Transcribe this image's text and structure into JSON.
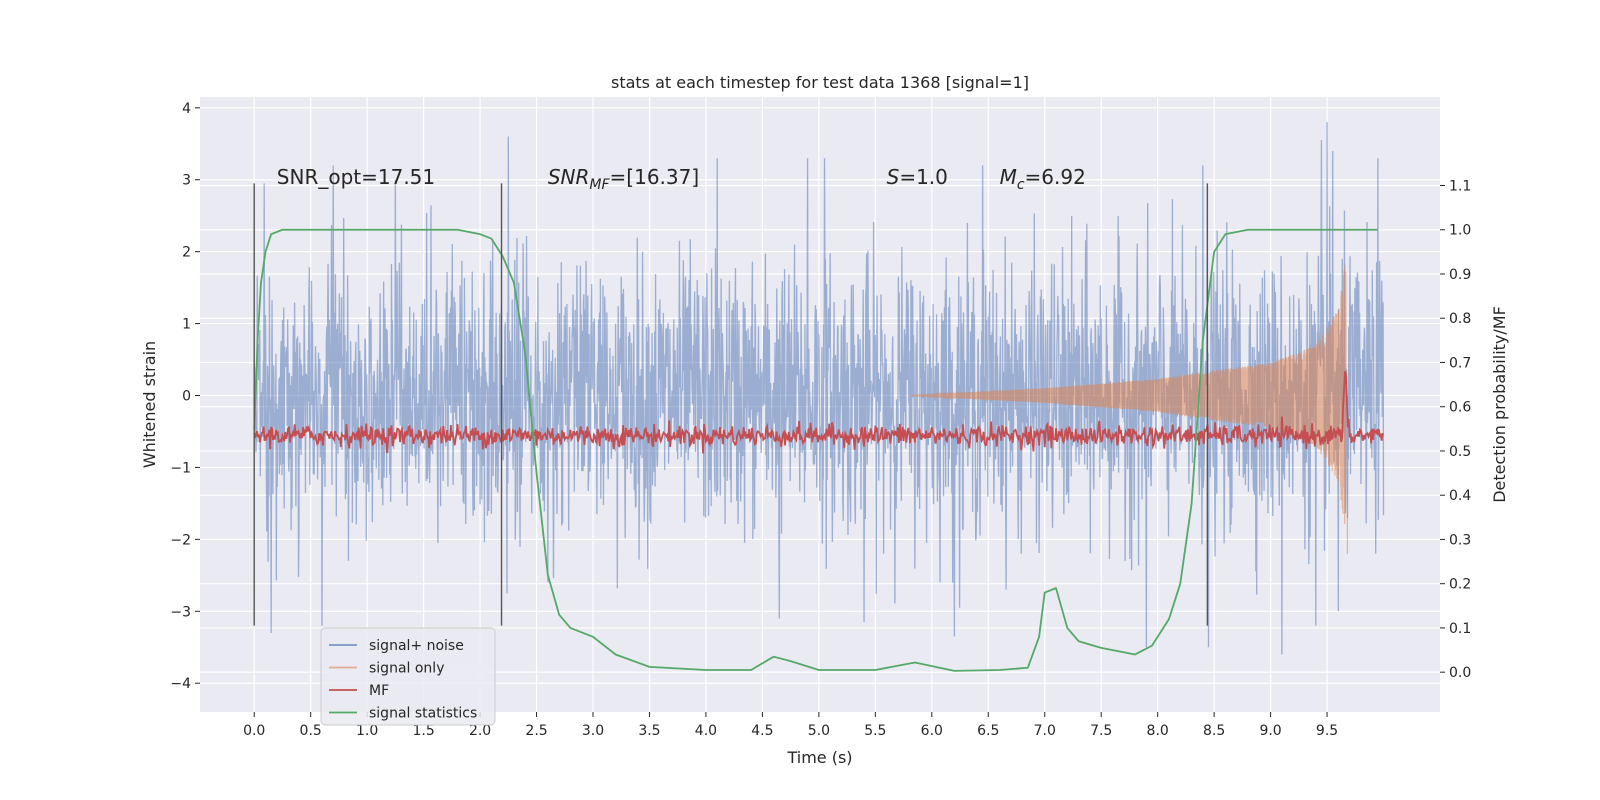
{
  "chart_data": {
    "type": "line",
    "title": "stats at each timestep for test data 1368 [signal=1]",
    "xlabel": "Time (s)",
    "ylabel": "Whitened strain",
    "y2label": "Detection probability/MF",
    "xlim": [
      -0.48,
      10.5
    ],
    "ylim": [
      -4.4,
      4.15
    ],
    "y2lim": [
      -0.09,
      1.3
    ],
    "xticks": [
      0.0,
      0.5,
      1.0,
      1.5,
      2.0,
      2.5,
      3.0,
      3.5,
      4.0,
      4.5,
      5.0,
      5.5,
      6.0,
      6.5,
      7.0,
      7.5,
      8.0,
      8.5,
      9.0,
      9.5
    ],
    "xtick_labels": [
      "0.0",
      "0.5",
      "1.0",
      "1.5",
      "2.0",
      "2.5",
      "3.0",
      "3.5",
      "4.0",
      "4.5",
      "5.0",
      "5.5",
      "6.0",
      "6.5",
      "7.0",
      "7.5",
      "8.0",
      "8.5",
      "9.0",
      "9.5"
    ],
    "yticks": [
      -4,
      -3,
      -2,
      -1,
      0,
      1,
      2,
      3,
      4
    ],
    "ytick_labels": [
      "−4",
      "−3",
      "−2",
      "−1",
      "0",
      "1",
      "2",
      "3",
      "4"
    ],
    "y2ticks": [
      0.0,
      0.1,
      0.2,
      0.3,
      0.4,
      0.5,
      0.6,
      0.7,
      0.8,
      0.9,
      1.0,
      1.1
    ],
    "y2tick_labels": [
      "0.0",
      "0.1",
      "0.2",
      "0.3",
      "0.4",
      "0.5",
      "0.6",
      "0.7",
      "0.8",
      "0.9",
      "1.0",
      "1.1"
    ],
    "grid": true,
    "legend_position": "lower-left",
    "background": "#eaeaf2",
    "annotations": {
      "snr_opt": "SNR_opt=17.51",
      "snr_mf_sym": "SNR",
      "snr_mf_sub": "MF",
      "snr_mf_val": "=[16.37]",
      "s_sym": "S",
      "s_val": "=1.0",
      "mc_sym": "M",
      "mc_sub": "c",
      "mc_val": "=6.92"
    },
    "vertical_markers": [
      0.0,
      2.19,
      8.44
    ],
    "marker_range": [
      -3.2,
      2.95
    ],
    "series": [
      {
        "name": "signal+ noise",
        "color": "#4c72b0",
        "axis": "left",
        "t_range": [
          0.0,
          10.0
        ],
        "sigma": 1.0,
        "extremes_high": [
          [
            0.7,
            3.2
          ],
          [
            1.25,
            3.0
          ],
          [
            2.25,
            3.6
          ],
          [
            4.1,
            3.3
          ],
          [
            4.9,
            3.3
          ],
          [
            5.05,
            3.3
          ],
          [
            6.45,
            3.2
          ],
          [
            8.4,
            3.2
          ],
          [
            9.45,
            3.55
          ],
          [
            9.5,
            3.8
          ],
          [
            9.55,
            3.4
          ],
          [
            9.95,
            3.3
          ]
        ],
        "extremes_low": [
          [
            0.15,
            -3.3
          ],
          [
            0.6,
            -3.2
          ],
          [
            2.6,
            -2.6
          ],
          [
            4.65,
            -3.1
          ],
          [
            5.4,
            -3.15
          ],
          [
            6.2,
            -3.35
          ],
          [
            7.9,
            -3.5
          ],
          [
            8.45,
            -3.5
          ],
          [
            9.1,
            -3.6
          ],
          [
            9.4,
            -3.2
          ],
          [
            9.6,
            -3.0
          ]
        ]
      },
      {
        "name": "signal only",
        "color": "#dd8452",
        "axis": "left",
        "t_range": [
          5.8,
          9.68
        ],
        "amplitude_env": [
          [
            5.8,
            0.0
          ],
          [
            7.0,
            0.1
          ],
          [
            8.0,
            0.23
          ],
          [
            8.5,
            0.35
          ],
          [
            9.0,
            0.45
          ],
          [
            9.4,
            0.7
          ],
          [
            9.6,
            1.2
          ],
          [
            9.66,
            1.85
          ],
          [
            9.68,
            -2.2
          ]
        ]
      },
      {
        "name": "MF",
        "color": "#c44e52",
        "axis": "right",
        "t_range": [
          0.0,
          10.0
        ],
        "baseline": 0.535,
        "noise": 0.012,
        "peak": [
          9.66,
          0.68
        ]
      },
      {
        "name": "signal statistics",
        "color": "#55a868",
        "axis": "right",
        "points": [
          [
            0.0,
            0.55
          ],
          [
            0.03,
            0.75
          ],
          [
            0.06,
            0.88
          ],
          [
            0.1,
            0.95
          ],
          [
            0.15,
            0.99
          ],
          [
            0.25,
            1.0
          ],
          [
            1.5,
            1.0
          ],
          [
            1.8,
            1.0
          ],
          [
            2.0,
            0.99
          ],
          [
            2.1,
            0.98
          ],
          [
            2.2,
            0.94
          ],
          [
            2.3,
            0.88
          ],
          [
            2.4,
            0.72
          ],
          [
            2.5,
            0.45
          ],
          [
            2.6,
            0.22
          ],
          [
            2.7,
            0.13
          ],
          [
            2.8,
            0.1
          ],
          [
            3.0,
            0.08
          ],
          [
            3.2,
            0.04
          ],
          [
            3.5,
            0.012
          ],
          [
            4.0,
            0.005
          ],
          [
            4.4,
            0.005
          ],
          [
            4.6,
            0.035
          ],
          [
            4.75,
            0.025
          ],
          [
            5.0,
            0.005
          ],
          [
            5.5,
            0.005
          ],
          [
            5.85,
            0.022
          ],
          [
            6.2,
            0.003
          ],
          [
            6.6,
            0.005
          ],
          [
            6.85,
            0.01
          ],
          [
            6.95,
            0.08
          ],
          [
            7.0,
            0.18
          ],
          [
            7.1,
            0.19
          ],
          [
            7.2,
            0.1
          ],
          [
            7.3,
            0.07
          ],
          [
            7.5,
            0.055
          ],
          [
            7.8,
            0.04
          ],
          [
            7.95,
            0.06
          ],
          [
            8.1,
            0.12
          ],
          [
            8.2,
            0.2
          ],
          [
            8.3,
            0.38
          ],
          [
            8.4,
            0.75
          ],
          [
            8.5,
            0.95
          ],
          [
            8.6,
            0.99
          ],
          [
            8.8,
            1.0
          ],
          [
            9.95,
            1.0
          ]
        ]
      }
    ]
  }
}
